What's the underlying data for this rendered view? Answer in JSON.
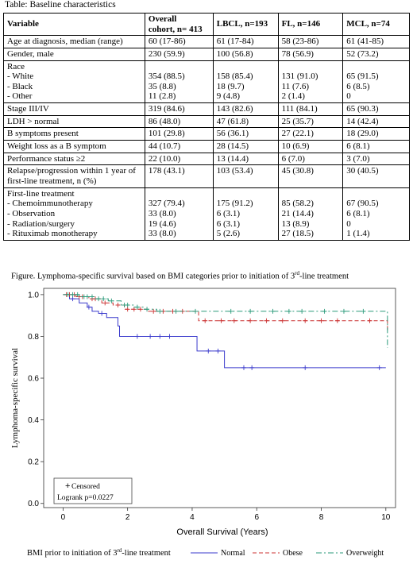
{
  "table": {
    "caption": "Table: Baseline characteristics",
    "headers": [
      [
        "Variable"
      ],
      [
        "Overall",
        "cohort, n= 413"
      ],
      [
        "LBCL, n=193"
      ],
      [
        "FL, n=146"
      ],
      [
        "MCL, n=74"
      ]
    ],
    "rows": [
      [
        [
          "Age at diagnosis, median (range)"
        ],
        [
          "60 (17-86)"
        ],
        [
          "61 (17-84)"
        ],
        [
          "58 (23-86)"
        ],
        [
          "61 (41-85)"
        ]
      ],
      [
        [
          "Gender, male"
        ],
        [
          "230 (59.9)"
        ],
        [
          "100 (56.8)"
        ],
        [
          "78 (56.9)"
        ],
        [
          "52 (73.2)"
        ]
      ],
      [
        [
          "Race",
          "- White",
          "- Black",
          "- Other"
        ],
        [
          "",
          "354 (88.5)",
          "35 (8.8)",
          "11 (2.8)"
        ],
        [
          "",
          "158 (85.4)",
          "18 (9.7)",
          "9 (4.8)"
        ],
        [
          "",
          "131 (91.0)",
          "11 (7.6)",
          "2 (1.4)"
        ],
        [
          "",
          "65 (91.5)",
          "6 (8.5)",
          "0"
        ]
      ],
      [
        [
          "Stage III/IV"
        ],
        [
          "319 (84.6)"
        ],
        [
          "143 (82.6)"
        ],
        [
          "111 (84.1)"
        ],
        [
          "65 (90.3)"
        ]
      ],
      [
        [
          "LDH > normal"
        ],
        [
          "86 (48.0)"
        ],
        [
          "47 (61.8)"
        ],
        [
          "25 (35.7)"
        ],
        [
          "14 (42.4)"
        ]
      ],
      [
        [
          "B symptoms present"
        ],
        [
          "101 (29.8)"
        ],
        [
          "56 (36.1)"
        ],
        [
          "27 (22.1)"
        ],
        [
          "18 (29.0)"
        ]
      ],
      [
        [
          "Weight loss as a B symptom"
        ],
        [
          "44 (10.7)"
        ],
        [
          "28 (14.5)"
        ],
        [
          "10 (6.9)"
        ],
        [
          "6 (8.1)"
        ]
      ],
      [
        [
          "Performance status ≥2"
        ],
        [
          "22 (10.0)"
        ],
        [
          "13 (14.4)"
        ],
        [
          "6 (7.0)"
        ],
        [
          "3 (7.0)"
        ]
      ],
      [
        [
          "Relapse/progression within 1 year of",
          "first-line treatment, n (%)"
        ],
        [
          "178 (43.1)"
        ],
        [
          "103 (53.4)"
        ],
        [
          "45 (30.8)"
        ],
        [
          "30 (40.5)"
        ]
      ],
      [
        [
          "First-line treatment",
          "- Chemoimmunotherapy",
          "- Observation",
          "- Radiation/surgery",
          "- Rituximab monotherapy"
        ],
        [
          "",
          "327 (79.4)",
          "33 (8.0)",
          "19 (4.6)",
          "33 (8.0)"
        ],
        [
          "",
          "175 (91.2)",
          "6 (3.1)",
          "6 (3.1)",
          "5 (2.6)"
        ],
        [
          "",
          "85 (58.2)",
          "21 (14.4)",
          "13 (8.9)",
          "27 (18.5)"
        ],
        [
          "",
          "67 (90.5)",
          "6 (8.1)",
          "0",
          "1 (1.4)"
        ]
      ]
    ]
  },
  "figure": {
    "caption_before": "Figure. Lymphoma-specific survival based on BMI categories prior to initiation of 3",
    "caption_sup": "rd",
    "caption_after": "-line treatment"
  },
  "chart_data": {
    "type": "line",
    "step": true,
    "xlabel": "Overall Survival (Years)",
    "ylabel": "Lymphoma-specific survival",
    "xlim": [
      -0.6,
      10.3
    ],
    "ylim": [
      -0.02,
      1.03
    ],
    "xticks": [
      0,
      2,
      4,
      6,
      8,
      10
    ],
    "yticks": [
      0.0,
      0.2,
      0.4,
      0.6,
      0.8,
      1.0
    ],
    "ytick_labels": [
      "0.0",
      "0.2",
      "0.4",
      "0.6",
      "0.8",
      "1.0"
    ],
    "inset_box": {
      "censored_label": "Censored",
      "censored_symbol": "+",
      "logrank": "Logrank p=0.0227"
    },
    "legend": {
      "title_before": "BMI prior to initiation of 3",
      "title_sup": "rd",
      "title_after": "-line treatment",
      "position": "bottom"
    },
    "series": [
      {
        "name": "Normal",
        "color": "#3a3acc",
        "dash": "",
        "steps": [
          [
            0,
            1.0
          ],
          [
            0.2,
            0.98
          ],
          [
            0.5,
            0.96
          ],
          [
            0.75,
            0.94
          ],
          [
            0.9,
            0.92
          ],
          [
            1.1,
            0.91
          ],
          [
            1.35,
            0.89
          ],
          [
            1.7,
            0.85
          ],
          [
            1.75,
            0.8
          ],
          [
            4.15,
            0.73
          ],
          [
            5.0,
            0.65
          ],
          [
            10.0,
            0.65
          ]
        ],
        "censored": [
          [
            0.3,
            0.98
          ],
          [
            0.8,
            0.94
          ],
          [
            1.2,
            0.91
          ],
          [
            2.3,
            0.8
          ],
          [
            2.7,
            0.8
          ],
          [
            3.0,
            0.8
          ],
          [
            3.3,
            0.8
          ],
          [
            4.5,
            0.73
          ],
          [
            4.8,
            0.73
          ],
          [
            5.6,
            0.65
          ],
          [
            5.85,
            0.65
          ],
          [
            7.5,
            0.65
          ],
          [
            9.8,
            0.65
          ]
        ]
      },
      {
        "name": "Obese",
        "color": "#cc3333",
        "dash": "5,3",
        "steps": [
          [
            0,
            1.0
          ],
          [
            0.4,
            0.99
          ],
          [
            0.8,
            0.98
          ],
          [
            1.2,
            0.96
          ],
          [
            1.55,
            0.95
          ],
          [
            1.9,
            0.93
          ],
          [
            2.6,
            0.92
          ],
          [
            4.2,
            0.875
          ],
          [
            10.0,
            0.875
          ],
          [
            10.05,
            0.83
          ]
        ],
        "censored": [
          [
            0.1,
            1.0
          ],
          [
            0.2,
            1.0
          ],
          [
            0.35,
            1.0
          ],
          [
            0.5,
            0.99
          ],
          [
            0.6,
            0.99
          ],
          [
            0.9,
            0.98
          ],
          [
            1.0,
            0.98
          ],
          [
            1.3,
            0.96
          ],
          [
            1.7,
            0.95
          ],
          [
            2.0,
            0.93
          ],
          [
            2.2,
            0.93
          ],
          [
            2.4,
            0.93
          ],
          [
            2.8,
            0.92
          ],
          [
            3.1,
            0.92
          ],
          [
            3.4,
            0.92
          ],
          [
            3.7,
            0.92
          ],
          [
            4.4,
            0.875
          ],
          [
            4.9,
            0.875
          ],
          [
            5.3,
            0.875
          ],
          [
            5.8,
            0.875
          ],
          [
            6.3,
            0.875
          ],
          [
            6.8,
            0.875
          ],
          [
            7.5,
            0.875
          ],
          [
            8.0,
            0.875
          ],
          [
            8.5,
            0.875
          ],
          [
            9.5,
            0.875
          ]
        ]
      },
      {
        "name": "Overweight",
        "color": "#2a9a7a",
        "dash": "7,3,2,3",
        "steps": [
          [
            0,
            1.0
          ],
          [
            0.5,
            0.99
          ],
          [
            1.0,
            0.98
          ],
          [
            1.4,
            0.97
          ],
          [
            1.8,
            0.95
          ],
          [
            2.2,
            0.94
          ],
          [
            2.5,
            0.93
          ],
          [
            2.9,
            0.92
          ],
          [
            10.0,
            0.92
          ],
          [
            10.05,
            0.745
          ]
        ],
        "censored": [
          [
            0.15,
            1.0
          ],
          [
            0.3,
            1.0
          ],
          [
            0.45,
            1.0
          ],
          [
            0.65,
            0.99
          ],
          [
            0.75,
            0.99
          ],
          [
            0.9,
            0.99
          ],
          [
            1.1,
            0.98
          ],
          [
            1.25,
            0.98
          ],
          [
            1.5,
            0.97
          ],
          [
            1.9,
            0.95
          ],
          [
            2.0,
            0.95
          ],
          [
            2.3,
            0.94
          ],
          [
            2.6,
            0.93
          ],
          [
            3.0,
            0.92
          ],
          [
            3.5,
            0.92
          ],
          [
            4.1,
            0.92
          ],
          [
            5.2,
            0.92
          ],
          [
            5.8,
            0.92
          ],
          [
            6.5,
            0.92
          ],
          [
            7.0,
            0.92
          ],
          [
            7.4,
            0.92
          ],
          [
            8.1,
            0.92
          ],
          [
            8.7,
            0.92
          ],
          [
            9.3,
            0.92
          ]
        ]
      }
    ]
  }
}
